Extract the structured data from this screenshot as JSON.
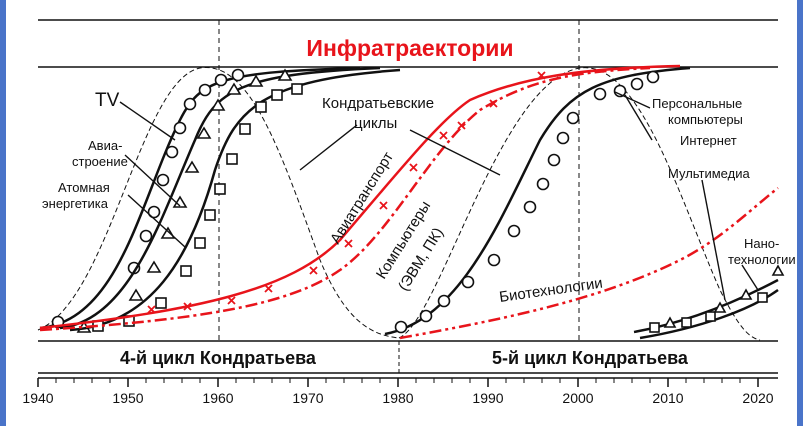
{
  "title": "Инфратраектории",
  "cycles": {
    "left": "4-й цикл Кондратьева",
    "right": "5-й цикл Кондратьева"
  },
  "labels": {
    "tv": "TV",
    "avia_1": "Авиа-",
    "avia_2": "строение",
    "atom_1": "Атомная",
    "atom_2": "энергетика",
    "kondr_1": "Кондратьевские",
    "kondr_2": "циклы",
    "aviatransport": "Авиатранспорт",
    "computers_1": "Компьютеры",
    "computers_2": "(ЭВМ, ПК)",
    "pc_1": "Персональные",
    "pc_2": "компьютеры",
    "internet": "Интернет",
    "multimedia": "Мультимедиа",
    "biotech": "Биотехнологии",
    "nano_1": "Нано-",
    "nano_2": "технологии"
  },
  "axis": {
    "ticks": [
      "1940",
      "1950",
      "1960",
      "1970",
      "1980",
      "1990",
      "2000",
      "2010",
      "2020"
    ]
  },
  "colors": {
    "red": "#e8141b",
    "black": "#111111",
    "frame_edge": "#4a74c9"
  }
}
